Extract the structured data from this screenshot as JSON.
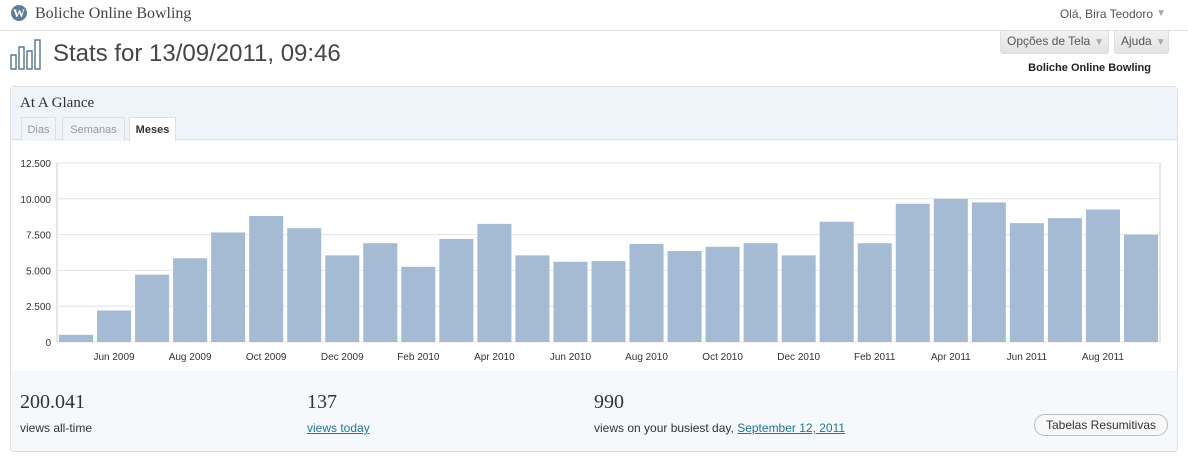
{
  "admin_bar": {
    "logo_icon": "wordpress-logo-icon",
    "logo_glyph": "W",
    "site_title": "Boliche Online Bowling",
    "greeting": "Olá, Bira Teodoro",
    "caret": "▼"
  },
  "header": {
    "page_title": "Stats for 13/09/2011, 09:46",
    "screen_options": "Opções de Tela",
    "help": "Ajuda",
    "caret": "▼",
    "blog_name": "Boliche Online Bowling"
  },
  "glance": {
    "title": "At A Glance",
    "tabs": [
      {
        "label": "Dias"
      },
      {
        "label": "Semanas"
      },
      {
        "label": "Meses",
        "active": true
      }
    ]
  },
  "summary": {
    "all_time": {
      "value": "200.041",
      "label": "views all-time"
    },
    "today": {
      "value": "137",
      "label": "views today"
    },
    "busiest": {
      "value": "990",
      "label": "views on your busiest day,",
      "date": "September 12, 2011"
    },
    "button": "Tabelas Resumitivas"
  },
  "colors": {
    "bar": "#a5bbd4",
    "link": "#21759b",
    "grid": "#e4e4e4"
  },
  "chart_data": {
    "type": "bar",
    "title": "",
    "xlabel": "",
    "ylabel": "",
    "ylim": [
      0,
      12500
    ],
    "yticks": [
      0,
      2500,
      5000,
      7500,
      10000,
      12500
    ],
    "ytick_labels": [
      "0",
      "2.500",
      "5.000",
      "7.500",
      "10.000",
      "12.500"
    ],
    "categories": [
      "May 2009",
      "Jun 2009",
      "Jul 2009",
      "Aug 2009",
      "Sep 2009",
      "Oct 2009",
      "Nov 2009",
      "Dec 2009",
      "Jan 2010",
      "Feb 2010",
      "Mar 2010",
      "Apr 2010",
      "May 2010",
      "Jun 2010",
      "Jul 2010",
      "Aug 2010",
      "Sep 2010",
      "Oct 2010",
      "Nov 2010",
      "Dec 2010",
      "Jan 2011",
      "Feb 2011",
      "Mar 2011",
      "Apr 2011",
      "May 2011",
      "Jun 2011",
      "Jul 2011",
      "Aug 2011",
      "Sep 2011"
    ],
    "xtick_labels": [
      "",
      "Jun 2009",
      "",
      "Aug 2009",
      "",
      "Oct 2009",
      "",
      "Dec 2009",
      "",
      "Feb 2010",
      "",
      "Apr 2010",
      "",
      "Jun 2010",
      "",
      "Aug 2010",
      "",
      "Oct 2010",
      "",
      "Dec 2010",
      "",
      "Feb 2011",
      "",
      "Apr 2011",
      "",
      "Jun 2011",
      "",
      "Aug 2011",
      ""
    ],
    "values": [
      500,
      2200,
      4700,
      5850,
      7650,
      8800,
      7950,
      6050,
      6900,
      5250,
      7200,
      8250,
      6050,
      5600,
      5650,
      6850,
      6350,
      6650,
      6900,
      6050,
      8400,
      6900,
      9650,
      10000,
      9750,
      8300,
      8650,
      9250,
      7500
    ],
    "grid": true,
    "legend": "none"
  }
}
